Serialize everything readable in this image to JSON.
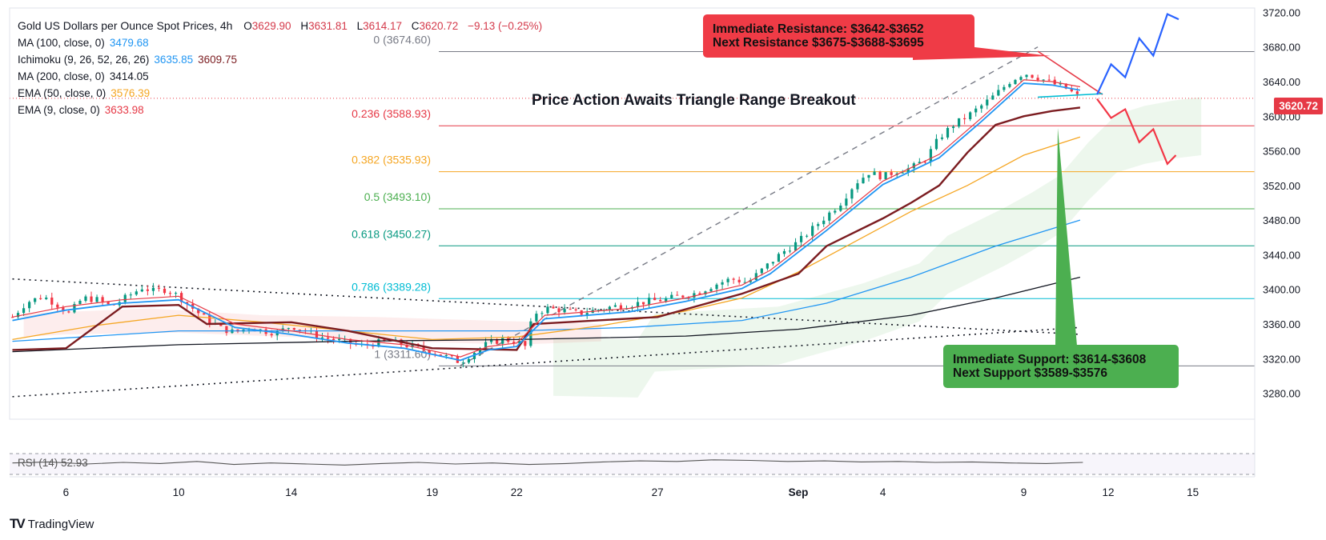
{
  "symbol": {
    "title": "Gold US Dollars per Ounce Spot Prices, 4h",
    "o_label": "O",
    "o": "3629.90",
    "h_label": "H",
    "h": "3631.81",
    "l_label": "L",
    "l": "3614.17",
    "c_label": "C",
    "c": "3620.72",
    "change": "−9.13 (−0.25%)"
  },
  "indicators": [
    {
      "label": "MA (100, close, 0)",
      "value": "3479.68",
      "color": "#2196f3"
    },
    {
      "label": "Ichimoku (9, 26, 52, 26, 26)",
      "value": "3635.85",
      "value2": "3609.75",
      "color": "#2196f3",
      "color2": "#7b1c20"
    },
    {
      "label": "MA (200, close, 0)",
      "value": "3414.05",
      "color": "#131722"
    },
    {
      "label": "EMA (50, close, 0)",
      "value": "3576.39",
      "color": "#f5a623"
    },
    {
      "label": "EMA (9, close, 0)",
      "value": "3633.98",
      "color": "#e63946"
    }
  ],
  "headline": "Price Action Awaits Triangle Range Breakout",
  "resistance_box": {
    "line1": "Immediate Resistance: $3642-$3652",
    "line2": "Next Resistance $3675-$3688-$3695"
  },
  "support_box": {
    "line1": "Immediate Support: $3614-$3608",
    "line2": "Next Support $3589-$3576"
  },
  "last_price": "3620.72",
  "rsi_label": "RSI (14)",
  "rsi_value": "52.93",
  "brand": "TradingView",
  "chart_data": {
    "type": "candlestick",
    "timeframe": "4h",
    "y_range": [
      3250,
      3725
    ],
    "y_ticks": [
      3280,
      3320,
      3360,
      3400,
      3440,
      3480,
      3520,
      3560,
      3600,
      3640,
      3680,
      3720
    ],
    "x_ticks": [
      {
        "label": "6",
        "day": 6
      },
      {
        "label": "10",
        "day": 10
      },
      {
        "label": "14",
        "day": 14
      },
      {
        "label": "19",
        "day": 19
      },
      {
        "label": "22",
        "day": 22
      },
      {
        "label": "27",
        "day": 27
      },
      {
        "label": "Sep",
        "day": 32
      },
      {
        "label": "4",
        "day": 35
      },
      {
        "label": "9",
        "day": 40
      },
      {
        "label": "12",
        "day": 43
      },
      {
        "label": "15",
        "day": 46
      }
    ],
    "fibonacci": [
      {
        "label": "0 (3674.60)",
        "price": 3674.6,
        "color": "#787b86"
      },
      {
        "label": "0.236 (3588.93)",
        "price": 3588.93,
        "color": "#e63946"
      },
      {
        "label": "0.382 (3535.93)",
        "price": 3535.93,
        "color": "#f5a623"
      },
      {
        "label": "0.5 (3493.10)",
        "price": 3493.1,
        "color": "#4caf50"
      },
      {
        "label": "0.618 (3450.27)",
        "price": 3450.27,
        "color": "#089981"
      },
      {
        "label": "0.786 (3389.28)",
        "price": 3389.28,
        "color": "#00bcd4"
      },
      {
        "label": "1 (3311.60)",
        "price": 3311.6,
        "color": "#787b86"
      }
    ],
    "close_path": [
      [
        4.1,
        3368
      ],
      [
        4.6,
        3385
      ],
      [
        5.2,
        3392
      ],
      [
        5.7,
        3382
      ],
      [
        6.1,
        3372
      ],
      [
        6.6,
        3390
      ],
      [
        7.1,
        3388
      ],
      [
        7.6,
        3380
      ],
      [
        8.2,
        3392
      ],
      [
        8.7,
        3402
      ],
      [
        9.1,
        3398
      ],
      [
        9.6,
        3400
      ],
      [
        10.0,
        3392
      ],
      [
        10.5,
        3378
      ],
      [
        11.0,
        3365
      ],
      [
        11.5,
        3355
      ],
      [
        12.0,
        3350
      ],
      [
        12.5,
        3356
      ],
      [
        13.0,
        3352
      ],
      [
        13.5,
        3350
      ],
      [
        14.0,
        3358
      ],
      [
        14.5,
        3352
      ],
      [
        15.0,
        3345
      ],
      [
        15.5,
        3342
      ],
      [
        16.0,
        3338
      ],
      [
        16.5,
        3335
      ],
      [
        17.0,
        3338
      ],
      [
        17.5,
        3340
      ],
      [
        18.0,
        3336
      ],
      [
        18.5,
        3332
      ],
      [
        19.0,
        3328
      ],
      [
        19.5,
        3322
      ],
      [
        20.0,
        3316
      ],
      [
        20.5,
        3328
      ],
      [
        21.0,
        3338
      ],
      [
        21.5,
        3342
      ],
      [
        22.0,
        3340
      ],
      [
        22.3,
        3334
      ],
      [
        22.6,
        3372
      ],
      [
        23.1,
        3378
      ],
      [
        23.6,
        3376
      ],
      [
        24.2,
        3372
      ],
      [
        24.8,
        3376
      ],
      [
        25.4,
        3380
      ],
      [
        26.0,
        3382
      ],
      [
        26.6,
        3386
      ],
      [
        27.2,
        3388
      ],
      [
        27.8,
        3392
      ],
      [
        28.4,
        3396
      ],
      [
        29.0,
        3405
      ],
      [
        29.6,
        3412
      ],
      [
        30.2,
        3408
      ],
      [
        30.8,
        3425
      ],
      [
        31.4,
        3442
      ],
      [
        32.0,
        3455
      ],
      [
        32.5,
        3470
      ],
      [
        33.0,
        3485
      ],
      [
        33.5,
        3500
      ],
      [
        34.0,
        3522
      ],
      [
        34.5,
        3535
      ],
      [
        35.0,
        3530
      ],
      [
        35.5,
        3537
      ],
      [
        36.0,
        3540
      ],
      [
        36.5,
        3550
      ],
      [
        37.0,
        3575
      ],
      [
        37.5,
        3590
      ],
      [
        38.0,
        3600
      ],
      [
        38.5,
        3612
      ],
      [
        39.0,
        3625
      ],
      [
        39.5,
        3640
      ],
      [
        40.0,
        3650
      ],
      [
        40.5,
        3645
      ],
      [
        41.0,
        3638
      ],
      [
        41.5,
        3632
      ],
      [
        42.0,
        3621
      ]
    ],
    "overlays": {
      "ema9": [
        [
          4.1,
          3368
        ],
        [
          6,
          3380
        ],
        [
          8,
          3388
        ],
        [
          10,
          3392
        ],
        [
          12,
          3360
        ],
        [
          14,
          3352
        ],
        [
          16,
          3342
        ],
        [
          18,
          3336
        ],
        [
          20,
          3322
        ],
        [
          21,
          3334
        ],
        [
          22,
          3338
        ],
        [
          23,
          3370
        ],
        [
          26,
          3378
        ],
        [
          28,
          3390
        ],
        [
          30,
          3405
        ],
        [
          31,
          3422
        ],
        [
          33,
          3472
        ],
        [
          35,
          3525
        ],
        [
          37,
          3556
        ],
        [
          38.5,
          3598
        ],
        [
          40,
          3642
        ],
        [
          41,
          3640
        ],
        [
          42,
          3634
        ]
      ],
      "ema50": [
        [
          4.1,
          3342
        ],
        [
          7,
          3358
        ],
        [
          10,
          3370
        ],
        [
          13,
          3362
        ],
        [
          16,
          3352
        ],
        [
          19,
          3342
        ],
        [
          22,
          3345
        ],
        [
          25,
          3358
        ],
        [
          28,
          3375
        ],
        [
          30,
          3390
        ],
        [
          32,
          3420
        ],
        [
          34,
          3455
        ],
        [
          36,
          3490
        ],
        [
          38,
          3520
        ],
        [
          40,
          3555
        ],
        [
          42,
          3576
        ]
      ],
      "ma100": [
        [
          4.1,
          3340
        ],
        [
          10,
          3352
        ],
        [
          16,
          3352
        ],
        [
          22,
          3352
        ],
        [
          26,
          3356
        ],
        [
          30,
          3364
        ],
        [
          33,
          3384
        ],
        [
          36,
          3414
        ],
        [
          39,
          3450
        ],
        [
          42,
          3480
        ]
      ],
      "ma200": [
        [
          4.1,
          3328
        ],
        [
          10,
          3336
        ],
        [
          16,
          3340
        ],
        [
          22,
          3342
        ],
        [
          28,
          3346
        ],
        [
          32,
          3354
        ],
        [
          36,
          3370
        ],
        [
          39,
          3390
        ],
        [
          42,
          3414
        ]
      ],
      "kijun": [
        [
          4.1,
          3330
        ],
        [
          6,
          3332
        ],
        [
          8,
          3380
        ],
        [
          10,
          3382
        ],
        [
          11,
          3360
        ],
        [
          14,
          3362
        ],
        [
          16,
          3352
        ],
        [
          19,
          3332
        ],
        [
          22,
          3330
        ],
        [
          22.6,
          3360
        ],
        [
          27,
          3368
        ],
        [
          30,
          3395
        ],
        [
          32,
          3418
        ],
        [
          33,
          3450
        ],
        [
          35,
          3482
        ],
        [
          36,
          3500
        ],
        [
          37,
          3520
        ],
        [
          38,
          3558
        ],
        [
          39,
          3590
        ],
        [
          40,
          3600
        ],
        [
          41,
          3606
        ],
        [
          42,
          3610
        ]
      ]
    },
    "triangle": {
      "upper": [
        [
          4.1,
          3412
        ],
        [
          42.0,
          3348
        ]
      ],
      "lower": [
        [
          4.1,
          3276
        ],
        [
          42.0,
          3356
        ]
      ],
      "ascending_dashed": [
        [
          20.0,
          3312
        ],
        [
          40.5,
          3680
        ]
      ]
    },
    "short_triangle": {
      "top": [
        [
          40.5,
          3675
        ],
        [
          42.8,
          3625
        ]
      ],
      "bottom": [
        [
          40.5,
          3622
        ],
        [
          42.8,
          3626
        ]
      ]
    },
    "scenario_up": [
      [
        42.6,
        3625
      ],
      [
        43.1,
        3660
      ],
      [
        43.6,
        3645
      ],
      [
        44.1,
        3690
      ],
      [
        44.6,
        3670
      ],
      [
        45.1,
        3718
      ],
      [
        45.5,
        3712
      ]
    ],
    "scenario_down": [
      [
        42.6,
        3620
      ],
      [
        43.1,
        3598
      ],
      [
        43.6,
        3608
      ],
      [
        44.1,
        3570
      ],
      [
        44.6,
        3585
      ],
      [
        45.1,
        3545
      ],
      [
        45.4,
        3555
      ]
    ],
    "rsi_series": [
      52,
      54,
      50,
      53,
      51,
      55,
      49,
      52,
      50,
      48,
      51,
      53,
      50,
      52,
      49,
      51,
      54,
      56,
      55,
      58,
      57,
      55,
      56,
      54,
      55,
      53,
      54,
      52,
      51,
      53
    ]
  }
}
